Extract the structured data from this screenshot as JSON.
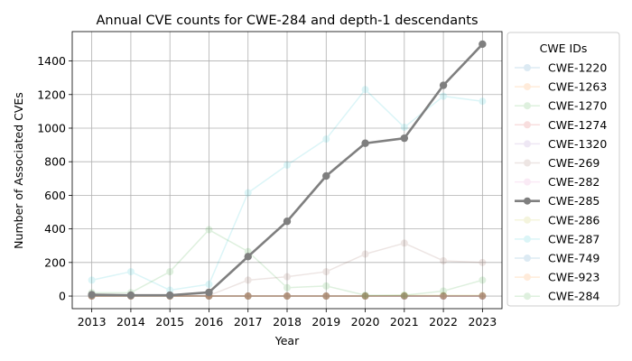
{
  "chart_data": {
    "type": "line",
    "title": "Annual CVE counts for CWE-284 and depth-1 descendants",
    "xlabel": "Year",
    "ylabel": "Number of Associated CVEs",
    "x": [
      2013,
      2014,
      2015,
      2016,
      2017,
      2018,
      2019,
      2020,
      2021,
      2022,
      2023
    ],
    "xlim": [
      2012.5,
      2023.5
    ],
    "ylim": [
      -75,
      1575
    ],
    "yticks": [
      0,
      200,
      400,
      600,
      800,
      1000,
      1200,
      1400
    ],
    "grid": true,
    "legend": {
      "title": "CWE IDs",
      "placement": "outside-right"
    },
    "series": [
      {
        "name": "CWE-1220",
        "color": "#1f77b4",
        "highlight": false,
        "values": [
          0,
          0,
          0,
          0,
          0,
          0,
          0,
          0,
          0,
          0,
          0
        ]
      },
      {
        "name": "CWE-1263",
        "color": "#ff7f0e",
        "highlight": false,
        "values": [
          0,
          0,
          0,
          0,
          0,
          0,
          0,
          0,
          0,
          0,
          0
        ]
      },
      {
        "name": "CWE-1270",
        "color": "#2ca02c",
        "highlight": false,
        "values": [
          0,
          0,
          0,
          0,
          0,
          0,
          0,
          0,
          0,
          0,
          0
        ]
      },
      {
        "name": "CWE-1274",
        "color": "#d62728",
        "highlight": false,
        "values": [
          0,
          0,
          0,
          0,
          0,
          0,
          0,
          0,
          0,
          0,
          0
        ]
      },
      {
        "name": "CWE-1320",
        "color": "#9467bd",
        "highlight": false,
        "values": [
          0,
          0,
          0,
          0,
          0,
          0,
          0,
          0,
          0,
          0,
          0
        ]
      },
      {
        "name": "CWE-269",
        "color": "#8c564b",
        "highlight": false,
        "values": [
          2,
          5,
          3,
          3,
          95,
          115,
          145,
          250,
          315,
          210,
          200
        ]
      },
      {
        "name": "CWE-282",
        "color": "#e377c2",
        "highlight": false,
        "values": [
          0,
          0,
          0,
          0,
          0,
          0,
          0,
          0,
          0,
          0,
          0
        ]
      },
      {
        "name": "CWE-285",
        "color": "#7f7f7f",
        "highlight": true,
        "values": [
          8,
          5,
          5,
          22,
          235,
          445,
          715,
          910,
          940,
          1255,
          1500
        ]
      },
      {
        "name": "CWE-286",
        "color": "#bcbd22",
        "highlight": false,
        "values": [
          0,
          0,
          0,
          0,
          0,
          0,
          0,
          0,
          5,
          5,
          5
        ]
      },
      {
        "name": "CWE-287",
        "color": "#17becf",
        "highlight": false,
        "values": [
          95,
          145,
          35,
          70,
          615,
          780,
          935,
          1230,
          1005,
          1190,
          1160
        ]
      },
      {
        "name": "CWE-749",
        "color": "#1f77b4",
        "highlight": false,
        "values": [
          0,
          0,
          0,
          0,
          0,
          0,
          0,
          0,
          0,
          0,
          0
        ]
      },
      {
        "name": "CWE-923",
        "color": "#ff7f0e",
        "highlight": false,
        "values": [
          0,
          0,
          0,
          0,
          0,
          0,
          0,
          0,
          0,
          0,
          0
        ]
      },
      {
        "name": "CWE-284",
        "color": "#2ca02c",
        "highlight": false,
        "values": [
          20,
          20,
          145,
          395,
          265,
          50,
          60,
          5,
          5,
          30,
          95
        ]
      }
    ]
  }
}
